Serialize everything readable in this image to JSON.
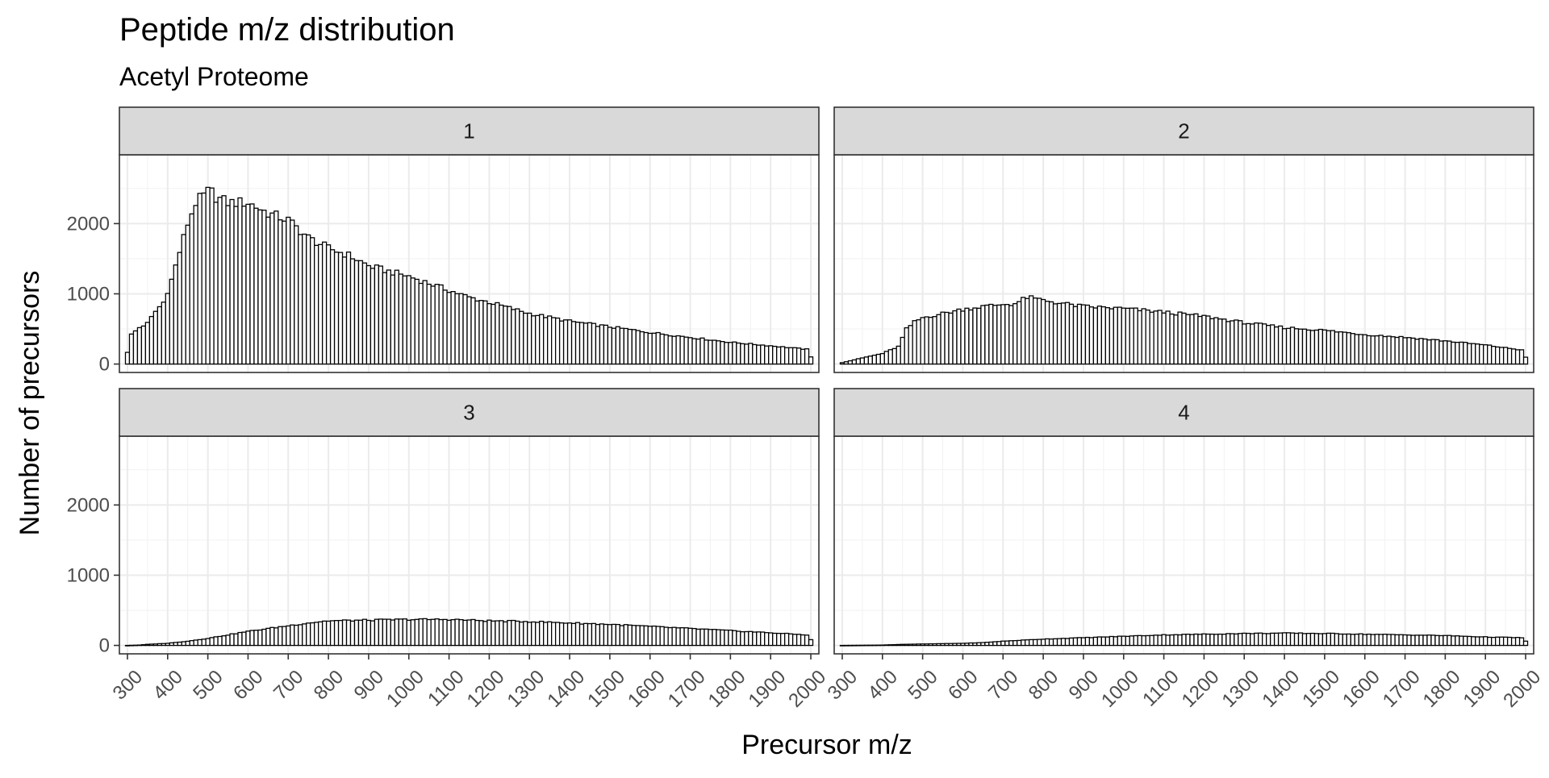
{
  "chart_data": {
    "type": "bar",
    "title": "Peptide m/z distribution",
    "subtitle": "Acetyl Proteome",
    "xlabel": "Precursor m/z",
    "ylabel": "Number of precursors",
    "xlim": [
      280,
      2020
    ],
    "ylim": [
      -120,
      2980
    ],
    "x_ticks": [
      300,
      400,
      500,
      600,
      700,
      800,
      900,
      1000,
      1100,
      1200,
      1300,
      1400,
      1500,
      1600,
      1700,
      1800,
      1900,
      2000
    ],
    "y_ticks": [
      0,
      1000,
      2000
    ],
    "bin_width": 10,
    "bin_start": 300,
    "grid": true,
    "bar_fill": "#ffffff",
    "bar_stroke": "#000000",
    "strip_fill": "#d9d9d9",
    "facets": [
      {
        "label": "1",
        "knots": [
          [
            300,
            170
          ],
          [
            310,
            420
          ],
          [
            330,
            520
          ],
          [
            350,
            580
          ],
          [
            370,
            750
          ],
          [
            390,
            880
          ],
          [
            410,
            1200
          ],
          [
            430,
            1600
          ],
          [
            450,
            2000
          ],
          [
            470,
            2300
          ],
          [
            490,
            2400
          ],
          [
            505,
            2480
          ],
          [
            520,
            2380
          ],
          [
            550,
            2300
          ],
          [
            600,
            2300
          ],
          [
            650,
            2150
          ],
          [
            700,
            2050
          ],
          [
            750,
            1800
          ],
          [
            800,
            1650
          ],
          [
            850,
            1550
          ],
          [
            900,
            1400
          ],
          [
            950,
            1320
          ],
          [
            1000,
            1250
          ],
          [
            1050,
            1150
          ],
          [
            1100,
            1050
          ],
          [
            1150,
            950
          ],
          [
            1200,
            880
          ],
          [
            1300,
            720
          ],
          [
            1400,
            610
          ],
          [
            1500,
            530
          ],
          [
            1600,
            450
          ],
          [
            1700,
            380
          ],
          [
            1800,
            310
          ],
          [
            1900,
            260
          ],
          [
            1990,
            210
          ],
          [
            2000,
            100
          ]
        ]
      },
      {
        "label": "2",
        "knots": [
          [
            300,
            20
          ],
          [
            330,
            60
          ],
          [
            360,
            100
          ],
          [
            400,
            150
          ],
          [
            440,
            250
          ],
          [
            460,
            500
          ],
          [
            480,
            600
          ],
          [
            500,
            660
          ],
          [
            550,
            720
          ],
          [
            600,
            780
          ],
          [
            650,
            820
          ],
          [
            700,
            850
          ],
          [
            730,
            860
          ],
          [
            760,
            950
          ],
          [
            790,
            920
          ],
          [
            850,
            860
          ],
          [
            900,
            820
          ],
          [
            1000,
            790
          ],
          [
            1100,
            740
          ],
          [
            1200,
            680
          ],
          [
            1300,
            590
          ],
          [
            1400,
            520
          ],
          [
            1500,
            480
          ],
          [
            1600,
            420
          ],
          [
            1700,
            380
          ],
          [
            1800,
            330
          ],
          [
            1900,
            270
          ],
          [
            1990,
            200
          ],
          [
            2000,
            100
          ]
        ]
      },
      {
        "label": "3",
        "knots": [
          [
            300,
            0
          ],
          [
            330,
            5
          ],
          [
            350,
            15
          ],
          [
            400,
            30
          ],
          [
            450,
            60
          ],
          [
            500,
            100
          ],
          [
            550,
            150
          ],
          [
            600,
            200
          ],
          [
            650,
            240
          ],
          [
            700,
            280
          ],
          [
            750,
            320
          ],
          [
            800,
            350
          ],
          [
            900,
            360
          ],
          [
            1000,
            370
          ],
          [
            1100,
            370
          ],
          [
            1200,
            350
          ],
          [
            1300,
            340
          ],
          [
            1400,
            320
          ],
          [
            1500,
            300
          ],
          [
            1600,
            270
          ],
          [
            1700,
            240
          ],
          [
            1800,
            210
          ],
          [
            1900,
            180
          ],
          [
            1990,
            150
          ],
          [
            2000,
            80
          ]
        ]
      },
      {
        "label": "4",
        "knots": [
          [
            300,
            0
          ],
          [
            400,
            5
          ],
          [
            450,
            15
          ],
          [
            500,
            20
          ],
          [
            550,
            25
          ],
          [
            600,
            30
          ],
          [
            650,
            40
          ],
          [
            700,
            60
          ],
          [
            800,
            90
          ],
          [
            900,
            110
          ],
          [
            1000,
            130
          ],
          [
            1100,
            150
          ],
          [
            1200,
            160
          ],
          [
            1300,
            170
          ],
          [
            1400,
            175
          ],
          [
            1500,
            170
          ],
          [
            1600,
            160
          ],
          [
            1700,
            150
          ],
          [
            1800,
            140
          ],
          [
            1900,
            120
          ],
          [
            1990,
            110
          ],
          [
            2000,
            60
          ]
        ]
      }
    ]
  }
}
